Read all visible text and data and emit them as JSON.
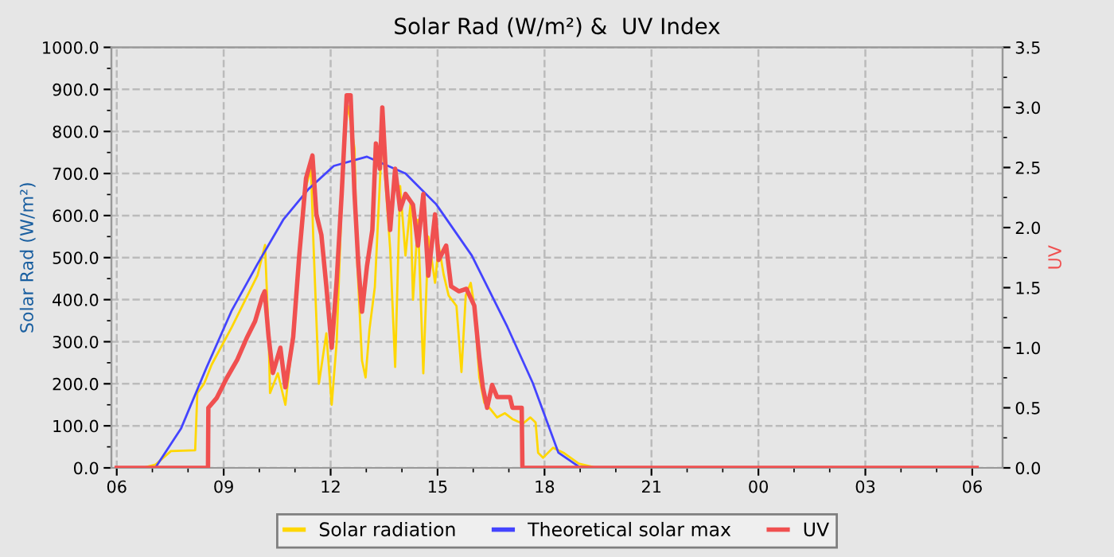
{
  "chart_data": {
    "type": "line",
    "title": "Solar Rad (W/m²) &  UV Index",
    "ylabel": "Solar Rad (W/m²)",
    "y2label": "UV",
    "xlim": [
      5.85,
      30.85
    ],
    "xticks": [
      {
        "value": 6,
        "label": "06"
      },
      {
        "value": 9,
        "label": "09"
      },
      {
        "value": 12,
        "label": "12"
      },
      {
        "value": 15,
        "label": "15"
      },
      {
        "value": 18,
        "label": "18"
      },
      {
        "value": 21,
        "label": "21"
      },
      {
        "value": 24,
        "label": "00"
      },
      {
        "value": 27,
        "label": "03"
      },
      {
        "value": 30,
        "label": "06"
      }
    ],
    "ylim": [
      0,
      1000
    ],
    "yticks": [
      {
        "value": 0,
        "label": "0.0"
      },
      {
        "value": 100,
        "label": "100.0"
      },
      {
        "value": 200,
        "label": "200.0"
      },
      {
        "value": 300,
        "label": "300.0"
      },
      {
        "value": 400,
        "label": "400.0"
      },
      {
        "value": 500,
        "label": "500.0"
      },
      {
        "value": 600,
        "label": "600.0"
      },
      {
        "value": 700,
        "label": "700.0"
      },
      {
        "value": 800,
        "label": "800.0"
      },
      {
        "value": 900,
        "label": "900.0"
      },
      {
        "value": 1000,
        "label": "1000.0"
      }
    ],
    "y2lim": [
      0,
      3.5
    ],
    "y2ticks": [
      {
        "value": 0,
        "label": "0.0"
      },
      {
        "value": 0.5,
        "label": "0.5"
      },
      {
        "value": 1,
        "label": "1.0"
      },
      {
        "value": 1.5,
        "label": "1.5"
      },
      {
        "value": 2,
        "label": "2.0"
      },
      {
        "value": 2.5,
        "label": "2.5"
      },
      {
        "value": 3,
        "label": "3.0"
      },
      {
        "value": 3.5,
        "label": "3.5"
      }
    ],
    "grid": true,
    "legend": "bottom",
    "series": [
      {
        "name": "Solar radiation",
        "color": "#ffd700",
        "x": [
          6.73,
          7.09,
          7.52,
          8.2,
          8.26,
          8.45,
          8.66,
          9.23,
          9.95,
          10.16,
          10.26,
          10.3,
          10.52,
          10.73,
          10.88,
          11.09,
          11.24,
          11.45,
          11.52,
          11.67,
          11.88,
          12.03,
          12.17,
          12.38,
          12.49,
          12.67,
          12.74,
          12.88,
          12.98,
          13.09,
          13.24,
          13.45,
          13.52,
          13.67,
          13.81,
          13.95,
          14.1,
          14.24,
          14.31,
          14.45,
          14.6,
          14.74,
          14.93,
          15.03,
          15.17,
          15.31,
          15.53,
          15.67,
          15.79,
          15.93,
          16.03,
          16.17,
          16.31,
          16.46,
          16.67,
          16.89,
          17.1,
          17.39,
          17.6,
          17.75,
          17.82,
          17.96,
          18.24,
          18.53,
          18.96,
          19.46
        ],
        "values": [
          0,
          8,
          40,
          42,
          178,
          200,
          245,
          335,
          458,
          530,
          313,
          178,
          225,
          150,
          265,
          470,
          650,
          710,
          530,
          200,
          320,
          150,
          300,
          800,
          860,
          760,
          500,
          255,
          215,
          330,
          430,
          800,
          700,
          520,
          240,
          670,
          505,
          627,
          400,
          590,
          225,
          550,
          440,
          530,
          460,
          410,
          385,
          228,
          410,
          440,
          385,
          215,
          155,
          142,
          120,
          130,
          116,
          105,
          120,
          108,
          36,
          24,
          48,
          36,
          10,
          0
        ]
      },
      {
        "name": "Theoretical solar max",
        "color": "#4444ff",
        "x": [
          7.08,
          7.8,
          8.52,
          9.23,
          9.95,
          10.67,
          11.38,
          12.09,
          13.02,
          14.1,
          14.96,
          15.96,
          16.96,
          17.67,
          18.39,
          18.96,
          19.39
        ],
        "values": [
          0,
          93,
          239,
          375,
          485,
          590,
          663,
          718,
          740,
          700,
          627,
          505,
          335,
          202,
          36,
          3,
          0
        ]
      },
      {
        "name": "UV",
        "color": "#f05050",
        "axis": "y2",
        "x": [
          6.0,
          8.56,
          8.57,
          8.8,
          9.09,
          9.38,
          9.66,
          9.88,
          10.09,
          10.15,
          10.26,
          10.38,
          10.59,
          10.73,
          10.95,
          11.12,
          11.31,
          11.49,
          11.6,
          11.74,
          11.88,
          12.03,
          12.17,
          12.31,
          12.45,
          12.56,
          12.67,
          12.78,
          12.88,
          13.02,
          13.17,
          13.27,
          13.38,
          13.45,
          13.55,
          13.67,
          13.81,
          13.95,
          14.1,
          14.31,
          14.45,
          14.6,
          14.74,
          14.93,
          15.03,
          15.24,
          15.38,
          15.6,
          15.81,
          16.03,
          16.17,
          16.27,
          16.39,
          16.53,
          16.67,
          17.03,
          17.1,
          17.36,
          17.38,
          30.12
        ],
        "values": [
          0,
          0,
          0.5,
          0.58,
          0.75,
          0.9,
          1.09,
          1.22,
          1.43,
          1.47,
          1.09,
          0.79,
          1.0,
          0.67,
          1.09,
          1.77,
          2.41,
          2.6,
          2.11,
          1.94,
          1.51,
          1.0,
          1.56,
          2.28,
          3.1,
          3.1,
          2.28,
          1.68,
          1.3,
          1.68,
          1.98,
          2.7,
          2.49,
          3.0,
          2.45,
          1.98,
          2.49,
          2.15,
          2.28,
          2.19,
          1.85,
          2.28,
          1.6,
          2.11,
          1.73,
          1.85,
          1.51,
          1.47,
          1.49,
          1.35,
          0.92,
          0.67,
          0.5,
          0.69,
          0.59,
          0.59,
          0.5,
          0.5,
          0,
          0
        ]
      }
    ]
  }
}
